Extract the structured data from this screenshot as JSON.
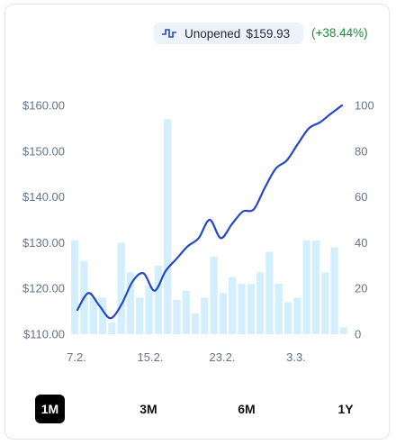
{
  "header": {
    "label": "Unopened",
    "price": "$159.93",
    "change": "(+38.44%)",
    "icon": "pulse-icon"
  },
  "colors": {
    "line": "#2447c7",
    "bar": "#d3eefc",
    "change": "#1f8a3b",
    "badge_bg": "#eef3fb"
  },
  "ranges": {
    "r1m": "1M",
    "r3m": "3M",
    "r6m": "6M",
    "r1y": "1Y",
    "active": "1M"
  },
  "chart_data": {
    "type": "line",
    "x_tick_labels": [
      "7.2.",
      "15.2.",
      "23.2.",
      "3.3."
    ],
    "y_left": {
      "ticks": [
        "$110.00",
        "$120.00",
        "$130.00",
        "$140.00",
        "$150.00",
        "$160.00"
      ],
      "range": [
        110,
        160
      ]
    },
    "y_right": {
      "ticks": [
        "0",
        "20",
        "40",
        "60",
        "80",
        "100"
      ],
      "range": [
        0,
        100
      ]
    },
    "grid": false,
    "series": [
      {
        "axis": "left",
        "type": "line",
        "values": [
          115.3,
          119.0,
          116.2,
          113.5,
          116.5,
          121.5,
          123.3,
          119.5,
          123.8,
          126.5,
          129.2,
          131.0,
          135.0,
          131.0,
          134.0,
          136.8,
          137.3,
          142.0,
          146.2,
          148.0,
          151.6,
          155.0,
          156.3,
          158.2,
          160.0
        ]
      },
      {
        "axis": "right",
        "type": "bar",
        "values": [
          41,
          32,
          16,
          16,
          5,
          40,
          27,
          16,
          21,
          30,
          94,
          15,
          19,
          9,
          16,
          34,
          18,
          25,
          22,
          22,
          27,
          36,
          22,
          14,
          16,
          41,
          41,
          27,
          38,
          3
        ]
      }
    ]
  }
}
